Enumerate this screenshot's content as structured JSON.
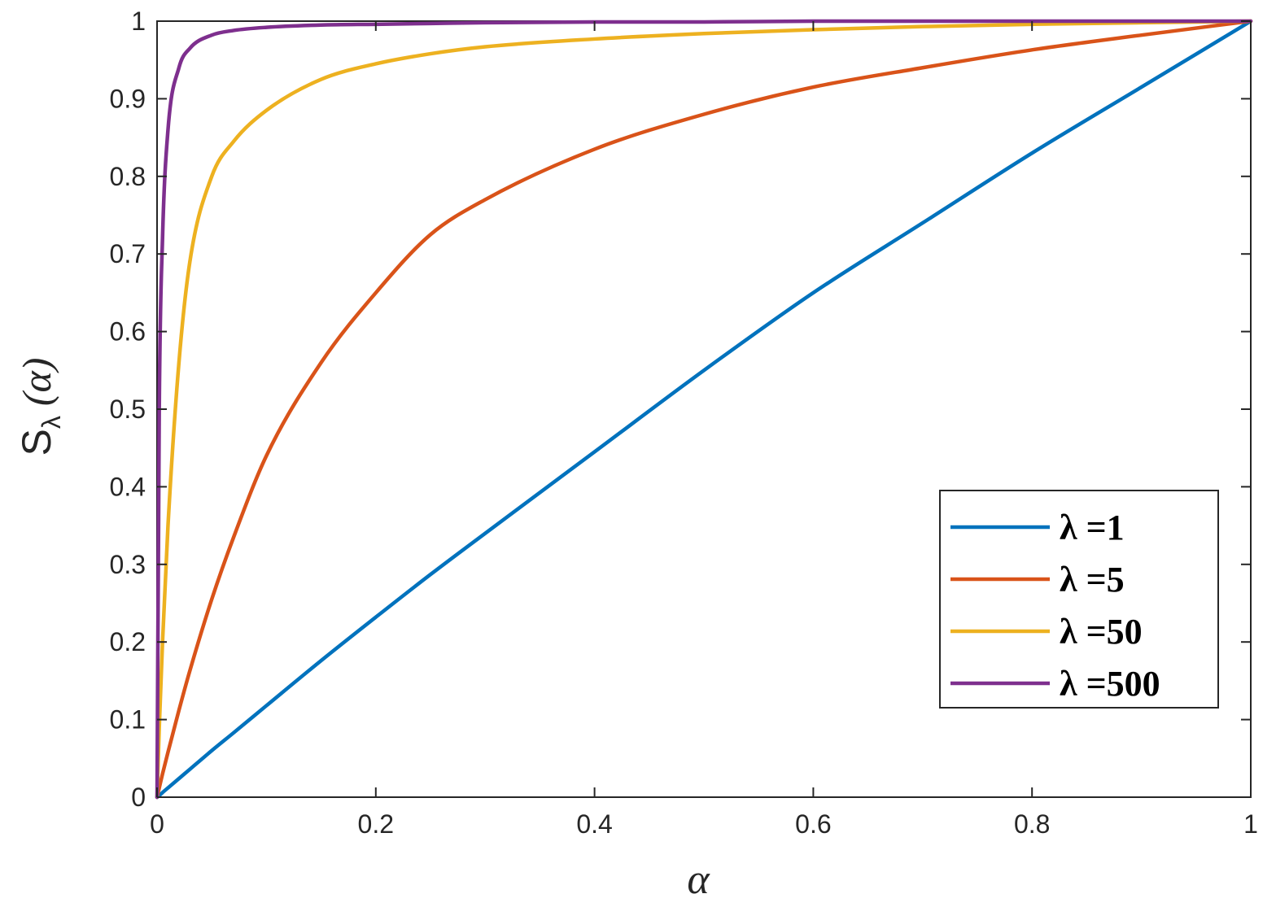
{
  "chart_data": {
    "type": "line",
    "title": "",
    "xlabel": "α",
    "ylabel": "S",
    "ylabel_sub": "λ",
    "ylabel_arg": "(α)",
    "xlim": [
      0,
      1
    ],
    "ylim": [
      0,
      1
    ],
    "xticks": [
      0,
      0.2,
      0.4,
      0.6,
      0.8,
      1
    ],
    "xtick_labels": [
      "0",
      "0.2",
      "0.4",
      "0.6",
      "0.8",
      "1"
    ],
    "yticks": [
      0,
      0.1,
      0.2,
      0.3,
      0.4,
      0.5,
      0.6,
      0.7,
      0.8,
      0.9,
      1
    ],
    "ytick_labels": [
      "0",
      "0.1",
      "0.2",
      "0.3",
      "0.4",
      "0.5",
      "0.6",
      "0.7",
      "0.8",
      "0.9",
      "1"
    ],
    "grid": false,
    "legend_position": "bottom-right",
    "x": [
      0,
      0.002,
      0.005,
      0.01,
      0.02,
      0.03,
      0.05,
      0.07,
      0.1,
      0.15,
      0.2,
      0.25,
      0.3,
      0.4,
      0.5,
      0.6,
      0.7,
      0.8,
      0.9,
      1
    ],
    "series": [
      {
        "name": "λ =1",
        "color": "#0072BD",
        "values": [
          0,
          0.002,
          0.006,
          0.012,
          0.024,
          0.036,
          0.06,
          0.083,
          0.118,
          0.176,
          0.232,
          0.287,
          0.34,
          0.445,
          0.55,
          0.65,
          0.74,
          0.83,
          0.915,
          1
        ]
      },
      {
        "name": "λ =5",
        "color": "#D95319",
        "values": [
          0,
          0.012,
          0.03,
          0.058,
          0.112,
          0.163,
          0.255,
          0.335,
          0.44,
          0.56,
          0.65,
          0.725,
          0.77,
          0.835,
          0.88,
          0.915,
          0.94,
          0.963,
          0.982,
          1
        ]
      },
      {
        "name": "λ =50",
        "color": "#EDB120",
        "values": [
          0,
          0.09,
          0.2,
          0.35,
          0.56,
          0.69,
          0.8,
          0.845,
          0.885,
          0.925,
          0.945,
          0.958,
          0.967,
          0.977,
          0.984,
          0.989,
          0.993,
          0.996,
          0.998,
          1
        ]
      },
      {
        "name": "λ =500",
        "color": "#7E2F8E",
        "values": [
          0,
          0.5,
          0.72,
          0.86,
          0.94,
          0.965,
          0.982,
          0.988,
          0.992,
          0.995,
          0.996,
          0.997,
          0.998,
          0.999,
          0.999,
          1,
          1,
          1,
          1,
          1
        ]
      }
    ]
  }
}
